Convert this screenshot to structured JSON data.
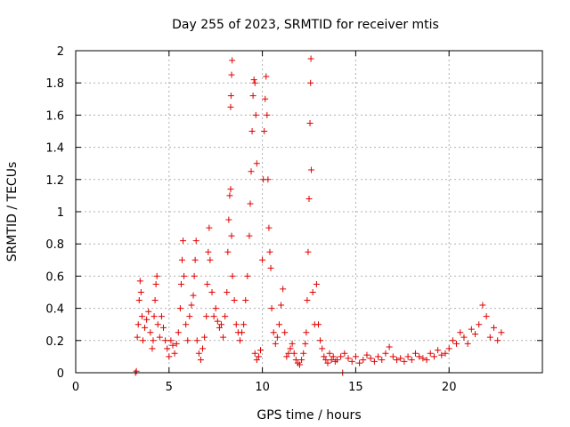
{
  "chart_data": {
    "type": "scatter",
    "title": "Day 255 of 2023, SRMTID for receiver mtis",
    "xlabel": "GPS time / hours",
    "ylabel": "SRMTID / TECUs",
    "xlim": [
      0,
      25
    ],
    "ylim": [
      0,
      2
    ],
    "x_ticks": [
      0,
      5,
      10,
      15,
      20
    ],
    "x_tick_labels": [
      "0",
      "5",
      "10",
      "15",
      "20"
    ],
    "y_ticks": [
      0,
      0.2,
      0.4,
      0.6,
      0.8,
      1,
      1.2,
      1.4,
      1.6,
      1.8,
      2
    ],
    "y_tick_labels": [
      "0",
      "0.2",
      "0.4",
      "0.6",
      "0.8",
      "1",
      "1.2",
      "1.4",
      "1.6",
      "1.8",
      "2"
    ],
    "grid": true,
    "marker": "+",
    "color": "#e00000",
    "series": [
      {
        "name": "mtis",
        "points": [
          [
            3.2,
            0.0
          ],
          [
            3.25,
            0.01
          ],
          [
            3.3,
            0.22
          ],
          [
            3.35,
            0.3
          ],
          [
            3.4,
            0.45
          ],
          [
            3.45,
            0.57
          ],
          [
            3.5,
            0.5
          ],
          [
            3.55,
            0.35
          ],
          [
            3.6,
            0.2
          ],
          [
            3.7,
            0.28
          ],
          [
            3.8,
            0.33
          ],
          [
            3.9,
            0.38
          ],
          [
            4.0,
            0.25
          ],
          [
            4.1,
            0.15
          ],
          [
            4.15,
            0.2
          ],
          [
            4.2,
            0.35
          ],
          [
            4.25,
            0.45
          ],
          [
            4.3,
            0.55
          ],
          [
            4.35,
            0.6
          ],
          [
            4.4,
            0.3
          ],
          [
            4.5,
            0.22
          ],
          [
            4.6,
            0.35
          ],
          [
            4.7,
            0.28
          ],
          [
            4.8,
            0.2
          ],
          [
            4.9,
            0.15
          ],
          [
            5.0,
            0.1
          ],
          [
            5.1,
            0.2
          ],
          [
            5.2,
            0.17
          ],
          [
            5.3,
            0.12
          ],
          [
            5.4,
            0.18
          ],
          [
            5.5,
            0.25
          ],
          [
            5.6,
            0.4
          ],
          [
            5.65,
            0.55
          ],
          [
            5.7,
            0.7
          ],
          [
            5.75,
            0.82
          ],
          [
            5.8,
            0.6
          ],
          [
            5.9,
            0.3
          ],
          [
            6.0,
            0.2
          ],
          [
            6.1,
            0.35
          ],
          [
            6.2,
            0.42
          ],
          [
            6.3,
            0.48
          ],
          [
            6.35,
            0.6
          ],
          [
            6.4,
            0.7
          ],
          [
            6.45,
            0.82
          ],
          [
            6.5,
            0.2
          ],
          [
            6.6,
            0.12
          ],
          [
            6.7,
            0.08
          ],
          [
            6.8,
            0.15
          ],
          [
            6.9,
            0.22
          ],
          [
            7.0,
            0.35
          ],
          [
            7.05,
            0.55
          ],
          [
            7.1,
            0.75
          ],
          [
            7.15,
            0.9
          ],
          [
            7.2,
            0.7
          ],
          [
            7.3,
            0.5
          ],
          [
            7.4,
            0.35
          ],
          [
            7.5,
            0.4
          ],
          [
            7.6,
            0.32
          ],
          [
            7.7,
            0.28
          ],
          [
            7.8,
            0.3
          ],
          [
            7.9,
            0.22
          ],
          [
            8.0,
            0.35
          ],
          [
            8.1,
            0.5
          ],
          [
            8.15,
            0.75
          ],
          [
            8.2,
            0.95
          ],
          [
            8.25,
            1.1
          ],
          [
            8.3,
            1.14
          ],
          [
            8.35,
            0.85
          ],
          [
            8.4,
            0.6
          ],
          [
            8.3,
            1.65
          ],
          [
            8.32,
            1.72
          ],
          [
            8.35,
            1.85
          ],
          [
            8.38,
            1.94
          ],
          [
            8.5,
            0.45
          ],
          [
            8.6,
            0.3
          ],
          [
            8.7,
            0.25
          ],
          [
            8.8,
            0.2
          ],
          [
            8.9,
            0.25
          ],
          [
            9.0,
            0.3
          ],
          [
            9.1,
            0.45
          ],
          [
            9.2,
            0.6
          ],
          [
            9.3,
            0.85
          ],
          [
            9.35,
            1.05
          ],
          [
            9.4,
            1.25
          ],
          [
            9.45,
            1.5
          ],
          [
            9.5,
            1.72
          ],
          [
            9.55,
            1.82
          ],
          [
            9.6,
            1.8
          ],
          [
            9.65,
            1.6
          ],
          [
            9.7,
            1.3
          ],
          [
            9.6,
            0.12
          ],
          [
            9.7,
            0.08
          ],
          [
            9.8,
            0.1
          ],
          [
            9.9,
            0.14
          ],
          [
            10.0,
            0.7
          ],
          [
            10.05,
            1.2
          ],
          [
            10.1,
            1.5
          ],
          [
            10.15,
            1.7
          ],
          [
            10.2,
            1.84
          ],
          [
            10.25,
            1.6
          ],
          [
            10.3,
            1.2
          ],
          [
            10.35,
            0.9
          ],
          [
            10.4,
            0.75
          ],
          [
            10.45,
            0.65
          ],
          [
            10.5,
            0.4
          ],
          [
            10.6,
            0.25
          ],
          [
            10.7,
            0.18
          ],
          [
            10.8,
            0.22
          ],
          [
            10.9,
            0.3
          ],
          [
            11.0,
            0.42
          ],
          [
            11.1,
            0.52
          ],
          [
            11.2,
            0.25
          ],
          [
            11.3,
            0.1
          ],
          [
            11.4,
            0.12
          ],
          [
            11.5,
            0.15
          ],
          [
            11.6,
            0.18
          ],
          [
            11.7,
            0.12
          ],
          [
            11.8,
            0.08
          ],
          [
            11.9,
            0.06
          ],
          [
            12.0,
            0.05
          ],
          [
            12.1,
            0.08
          ],
          [
            12.2,
            0.12
          ],
          [
            12.3,
            0.18
          ],
          [
            12.35,
            0.25
          ],
          [
            12.4,
            0.45
          ],
          [
            12.45,
            0.75
          ],
          [
            12.5,
            1.08
          ],
          [
            12.55,
            1.55
          ],
          [
            12.6,
            1.95
          ],
          [
            12.58,
            1.8
          ],
          [
            12.62,
            1.26
          ],
          [
            12.7,
            0.5
          ],
          [
            12.8,
            0.3
          ],
          [
            12.9,
            0.55
          ],
          [
            13.0,
            0.3
          ],
          [
            13.1,
            0.2
          ],
          [
            13.2,
            0.15
          ],
          [
            13.3,
            0.1
          ],
          [
            13.4,
            0.08
          ],
          [
            13.5,
            0.06
          ],
          [
            13.6,
            0.12
          ],
          [
            13.7,
            0.08
          ],
          [
            13.8,
            0.1
          ],
          [
            13.9,
            0.07
          ],
          [
            14.0,
            0.08
          ],
          [
            14.2,
            0.1
          ],
          [
            14.3,
            0.0
          ],
          [
            14.4,
            0.12
          ],
          [
            14.6,
            0.09
          ],
          [
            14.8,
            0.07
          ],
          [
            15.0,
            0.1
          ],
          [
            15.2,
            0.06
          ],
          [
            15.4,
            0.08
          ],
          [
            15.6,
            0.11
          ],
          [
            15.8,
            0.09
          ],
          [
            16.0,
            0.07
          ],
          [
            16.2,
            0.1
          ],
          [
            16.4,
            0.08
          ],
          [
            16.6,
            0.12
          ],
          [
            16.8,
            0.16
          ],
          [
            17.0,
            0.1
          ],
          [
            17.2,
            0.08
          ],
          [
            17.4,
            0.09
          ],
          [
            17.6,
            0.07
          ],
          [
            17.8,
            0.1
          ],
          [
            18.0,
            0.08
          ],
          [
            18.2,
            0.12
          ],
          [
            18.4,
            0.1
          ],
          [
            18.6,
            0.09
          ],
          [
            18.8,
            0.08
          ],
          [
            19.0,
            0.12
          ],
          [
            19.2,
            0.1
          ],
          [
            19.4,
            0.14
          ],
          [
            19.6,
            0.11
          ],
          [
            19.8,
            0.12
          ],
          [
            20.0,
            0.15
          ],
          [
            20.2,
            0.2
          ],
          [
            20.4,
            0.18
          ],
          [
            20.6,
            0.25
          ],
          [
            20.8,
            0.22
          ],
          [
            21.0,
            0.18
          ],
          [
            21.2,
            0.27
          ],
          [
            21.4,
            0.24
          ],
          [
            21.6,
            0.3
          ],
          [
            21.8,
            0.42
          ],
          [
            22.0,
            0.35
          ],
          [
            22.2,
            0.22
          ],
          [
            22.4,
            0.28
          ],
          [
            22.6,
            0.2
          ],
          [
            22.8,
            0.25
          ]
        ]
      }
    ]
  }
}
